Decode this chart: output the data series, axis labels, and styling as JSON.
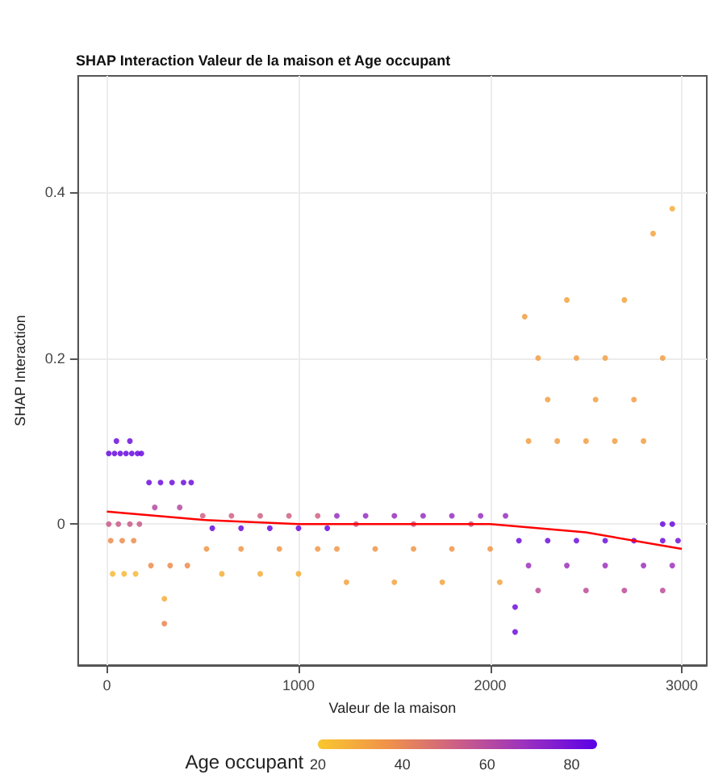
{
  "chart_data": {
    "type": "scatter",
    "title": "SHAP Interaction Valeur de la maison et Age occupant",
    "xlabel": "Valeur de la maison",
    "ylabel": "SHAP Interaction",
    "clabel": "Age occupant",
    "xlim": [
      -150,
      3130
    ],
    "xticks": [
      0,
      1000,
      2000,
      3000
    ],
    "ylim": [
      -0.17,
      0.54
    ],
    "yticks": [
      0.0,
      0.2,
      0.4
    ],
    "clim": [
      20,
      86
    ],
    "cticks": [
      20,
      40,
      60,
      80
    ],
    "grid": true,
    "marker": "circle",
    "series": [
      {
        "x": [
          10,
          40,
          70,
          100,
          130,
          160,
          180,
          50,
          120,
          10,
          60,
          120,
          170,
          20,
          80,
          140,
          30,
          90,
          150,
          220,
          280,
          340,
          400,
          440,
          250,
          380,
          230,
          330,
          420,
          300,
          300,
          500,
          650,
          800,
          950,
          1100,
          550,
          700,
          850,
          1000,
          1150,
          520,
          700,
          900,
          1100,
          600,
          800,
          1000,
          1200,
          1350,
          1500,
          1650,
          1800,
          1950,
          2080,
          1300,
          1600,
          1900,
          1200,
          1400,
          1600,
          1800,
          2000,
          1250,
          1500,
          1750,
          2050,
          2150,
          2300,
          2450,
          2600,
          2750,
          2900,
          2980,
          2200,
          2400,
          2600,
          2800,
          2950,
          2250,
          2500,
          2700,
          2900,
          2900,
          2950,
          2130,
          2130,
          2200,
          2350,
          2500,
          2650,
          2800,
          2250,
          2450,
          2600,
          2900,
          2300,
          2550,
          2750,
          2400,
          2700,
          2850,
          2950,
          2180
        ],
        "values": [
          0.085,
          0.085,
          0.085,
          0.085,
          0.085,
          0.085,
          0.085,
          0.1,
          0.1,
          0.0,
          0.0,
          0.0,
          0.0,
          -0.02,
          -0.02,
          -0.02,
          -0.06,
          -0.06,
          -0.06,
          0.05,
          0.05,
          0.05,
          0.05,
          0.05,
          0.02,
          0.02,
          -0.05,
          -0.05,
          -0.05,
          -0.09,
          -0.12,
          0.01,
          0.01,
          0.01,
          0.01,
          0.01,
          -0.005,
          -0.005,
          -0.005,
          -0.005,
          -0.005,
          -0.03,
          -0.03,
          -0.03,
          -0.03,
          -0.06,
          -0.06,
          -0.06,
          0.01,
          0.01,
          0.01,
          0.01,
          0.01,
          0.01,
          0.01,
          0.0,
          0.0,
          0.0,
          -0.03,
          -0.03,
          -0.03,
          -0.03,
          -0.03,
          -0.07,
          -0.07,
          -0.07,
          -0.07,
          -0.02,
          -0.02,
          -0.02,
          -0.02,
          -0.02,
          -0.02,
          -0.02,
          -0.05,
          -0.05,
          -0.05,
          -0.05,
          -0.05,
          -0.08,
          -0.08,
          -0.08,
          -0.08,
          0.0,
          0.0,
          -0.1,
          -0.13,
          0.1,
          0.1,
          0.1,
          0.1,
          0.1,
          0.2,
          0.2,
          0.2,
          0.2,
          0.15,
          0.15,
          0.15,
          0.27,
          0.27,
          0.35,
          0.38,
          0.25
        ],
        "colors": [
          "#6a0ade",
          "#6a0ade",
          "#6a0ade",
          "#6a0ade",
          "#6a0ade",
          "#6a0ade",
          "#6a0ade",
          "#700fdb",
          "#700fdb",
          "#c85c8a",
          "#c85c8a",
          "#c85c8a",
          "#c85c8a",
          "#ed8d4e",
          "#ed8d4e",
          "#ed8d4e",
          "#f6b836",
          "#f6b836",
          "#f6b836",
          "#700fdb",
          "#700fdb",
          "#700fdb",
          "#700fdb",
          "#700fdb",
          "#b44aa0",
          "#b44aa0",
          "#ed8d4e",
          "#ed8d4e",
          "#ed8d4e",
          "#f4ae3b",
          "#e88652",
          "#d06282",
          "#d06282",
          "#d06282",
          "#d06282",
          "#d06282",
          "#6a0ade",
          "#6a0ade",
          "#6a0ade",
          "#6a0ade",
          "#6a0ade",
          "#f19747",
          "#f19747",
          "#f19747",
          "#f19747",
          "#f4ae3b",
          "#f4ae3b",
          "#f4ae3b",
          "#982fc1",
          "#982fc1",
          "#982fc1",
          "#982fc1",
          "#982fc1",
          "#982fc1",
          "#982fc1",
          "#c85c8a",
          "#c85c8a",
          "#c85c8a",
          "#f19747",
          "#f19747",
          "#f19747",
          "#f19747",
          "#f19747",
          "#f3a540",
          "#f3a540",
          "#f3a540",
          "#f3a540",
          "#700fdb",
          "#700fdb",
          "#700fdb",
          "#700fdb",
          "#700fdb",
          "#700fdb",
          "#700fdb",
          "#9d34bb",
          "#9d34bb",
          "#9d34bb",
          "#9d34bb",
          "#9d34bb",
          "#bd4c9a",
          "#bd4c9a",
          "#bd4c9a",
          "#bd4c9a",
          "#6a0ade",
          "#6a0ade",
          "#700fdb",
          "#700fdb",
          "#f29f43",
          "#f29f43",
          "#f29f43",
          "#f29f43",
          "#f29f43",
          "#f29f43",
          "#f29f43",
          "#f29f43",
          "#f29f43",
          "#f29f43",
          "#f29f43",
          "#f29f43",
          "#f3a540",
          "#f3a540",
          "#f3a540",
          "#f4ae3b",
          "#f29f43"
        ]
      },
      {
        "type": "line",
        "color": "#ff0000",
        "marker": "none",
        "x": [
          0,
          500,
          1000,
          1500,
          2000,
          2100,
          2500,
          3000
        ],
        "values": [
          0.015,
          0.005,
          0.0,
          0.0,
          0.0,
          -0.002,
          -0.01,
          -0.03
        ]
      }
    ]
  }
}
